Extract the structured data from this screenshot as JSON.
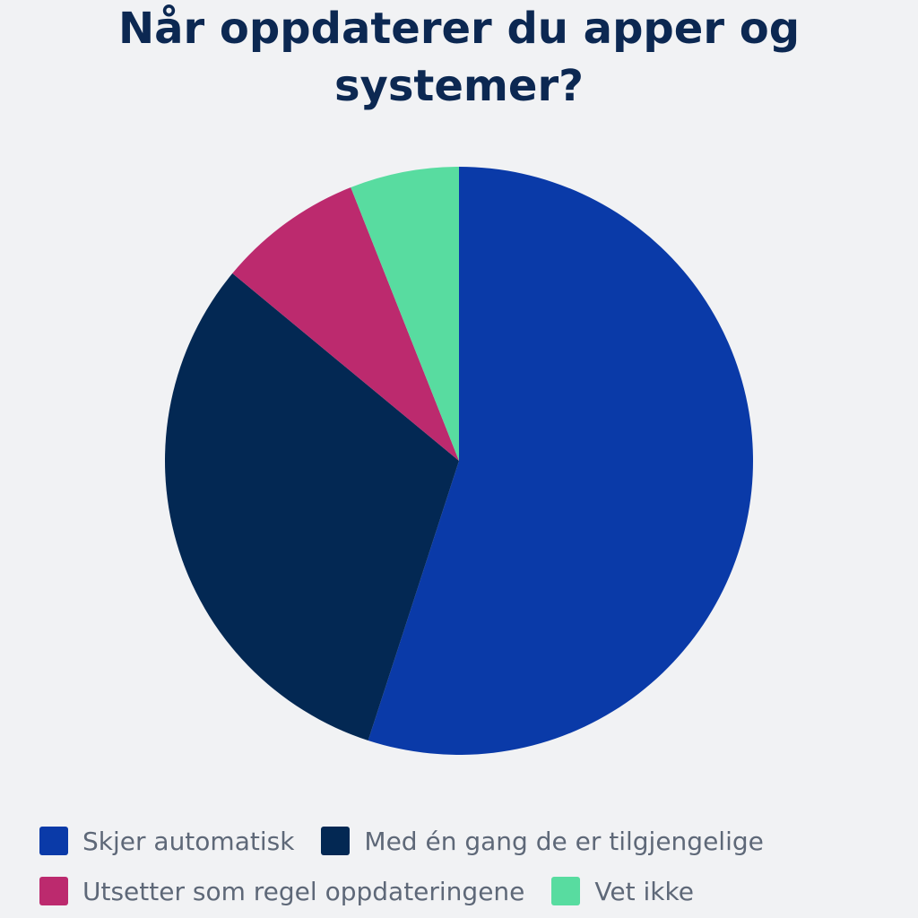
{
  "chart_data": {
    "type": "pie",
    "title": "Når oppdaterer du apper og systemer?",
    "categories": [
      "Skjer automatisk",
      "Med én gang de er tilgjengelige",
      "Utsetter som regel oppdateringene",
      "Vet ikke"
    ],
    "values": [
      55,
      31,
      8,
      6
    ],
    "unit": "%",
    "colors": [
      "#0a3aa8",
      "#032853",
      "#bc2a6e",
      "#58dca0"
    ],
    "legend_position": "bottom",
    "start_angle": "top (12 o'clock), clockwise"
  },
  "legend": {
    "rows": [
      [
        0,
        1
      ],
      [
        2,
        3
      ]
    ]
  }
}
